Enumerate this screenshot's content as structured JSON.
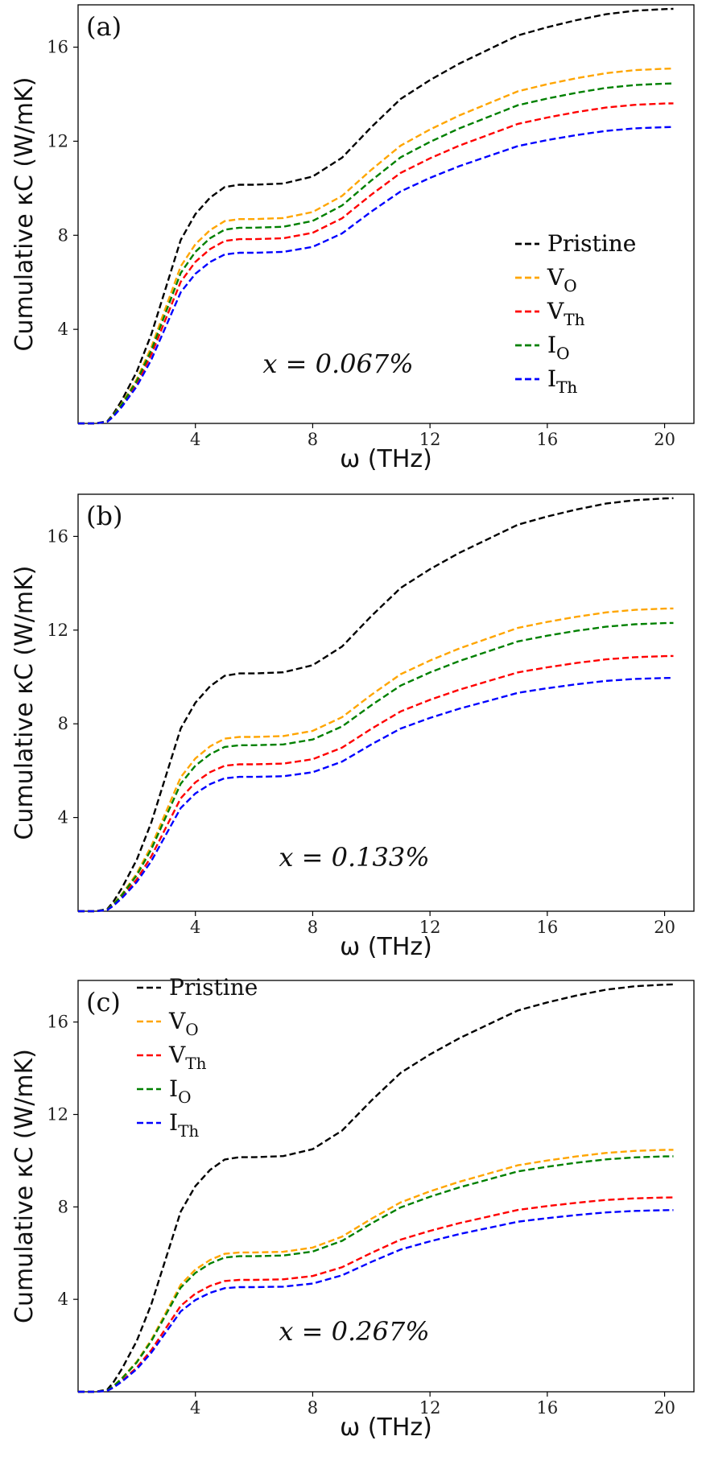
{
  "chart_data": [
    {
      "type": "line",
      "panel_label": "(a)",
      "annotation": "x = 0.067%",
      "xlabel": "ω (THz)",
      "ylabel": "Cumulative κC (W/mK)",
      "xlim": [
        0,
        21
      ],
      "ylim": [
        0,
        17.8
      ],
      "xticks": [
        "4",
        "8",
        "12",
        "16",
        "20"
      ],
      "yticks": [
        "4",
        "8",
        "12",
        "16"
      ],
      "legend_position": "right-middle",
      "series": [
        {
          "name": "Pristine",
          "sub": "",
          "color": "#000000",
          "scale": 1.0
        },
        {
          "name": "V",
          "sub": "O",
          "color": "#ffa500",
          "scale": 0.856
        },
        {
          "name": "V",
          "sub": "Th",
          "color": "#ff0000",
          "scale": 0.772
        },
        {
          "name": "I",
          "sub": "O",
          "color": "#008000",
          "scale": 0.82
        },
        {
          "name": "I",
          "sub": "Th",
          "color": "#0000ff",
          "scale": 0.715
        }
      ]
    },
    {
      "type": "line",
      "panel_label": "(b)",
      "annotation": "x = 0.133%",
      "xlabel": "ω (THz)",
      "ylabel": "Cumulative κC (W/mK)",
      "xlim": [
        0,
        21
      ],
      "ylim": [
        0,
        17.8
      ],
      "xticks": [
        "4",
        "8",
        "12",
        "16",
        "20"
      ],
      "yticks": [
        "4",
        "8",
        "12",
        "16"
      ],
      "legend_position": "right-middle",
      "series": [
        {
          "name": "Pristine",
          "sub": "",
          "color": "#000000",
          "scale": 1.0
        },
        {
          "name": "V",
          "sub": "O",
          "color": "#ffa500",
          "scale": 0.733
        },
        {
          "name": "V",
          "sub": "Th",
          "color": "#ff0000",
          "scale": 0.618
        },
        {
          "name": "I",
          "sub": "O",
          "color": "#008000",
          "scale": 0.698
        },
        {
          "name": "I",
          "sub": "Th",
          "color": "#0000ff",
          "scale": 0.565
        }
      ]
    },
    {
      "type": "line",
      "panel_label": "(c)",
      "annotation": "x = 0.267%",
      "xlabel": "ω (THz)",
      "ylabel": "Cumulative κC (W/mK)",
      "xlim": [
        0,
        21
      ],
      "ylim": [
        0,
        17.8
      ],
      "xticks": [
        "4",
        "8",
        "12",
        "16",
        "20"
      ],
      "yticks": [
        "4",
        "8",
        "12",
        "16"
      ],
      "legend_position": "top-left",
      "series": [
        {
          "name": "Pristine",
          "sub": "",
          "color": "#000000",
          "scale": 1.0
        },
        {
          "name": "V",
          "sub": "O",
          "color": "#ffa500",
          "scale": 0.594
        },
        {
          "name": "V",
          "sub": "Th",
          "color": "#ff0000",
          "scale": 0.477
        },
        {
          "name": "I",
          "sub": "O",
          "color": "#008000",
          "scale": 0.578
        },
        {
          "name": "I",
          "sub": "Th",
          "color": "#0000ff",
          "scale": 0.446
        }
      ]
    }
  ],
  "pristine_curve": {
    "omega": [
      0,
      0.6,
      1.0,
      1.2,
      1.5,
      2.0,
      2.5,
      3.0,
      3.5,
      4.0,
      4.5,
      5.0,
      5.5,
      6.0,
      7.0,
      8.0,
      9.0,
      10.0,
      11.0,
      12.0,
      13.0,
      14.0,
      15.0,
      16.0,
      17.0,
      18.0,
      19.0,
      20.0,
      20.3
    ],
    "kappa": [
      0,
      0,
      0.1,
      0.4,
      1.0,
      2.2,
      3.8,
      5.8,
      7.8,
      8.9,
      9.6,
      10.05,
      10.15,
      10.15,
      10.2,
      10.5,
      11.3,
      12.6,
      13.8,
      14.6,
      15.3,
      15.9,
      16.5,
      16.85,
      17.15,
      17.4,
      17.55,
      17.62,
      17.63
    ]
  }
}
